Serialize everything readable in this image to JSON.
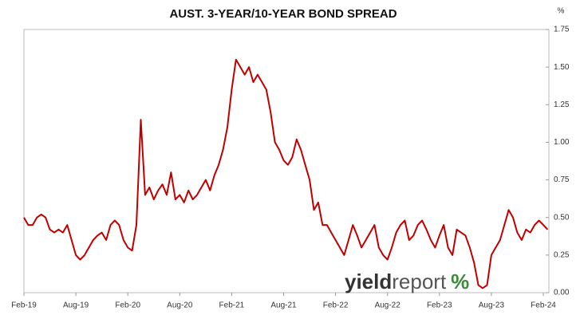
{
  "chart_data": {
    "type": "line",
    "title": "AUST. 3-YEAR/10-YEAR BOND SPREAD",
    "y_unit": "%",
    "watermark": [
      "yield",
      "report",
      "%"
    ],
    "categories": [
      "Feb-19",
      null,
      null,
      null,
      null,
      null,
      null,
      null,
      null,
      null,
      null,
      null,
      "Aug-19",
      null,
      null,
      null,
      null,
      null,
      null,
      null,
      null,
      null,
      null,
      null,
      "Feb-20",
      null,
      null,
      null,
      null,
      null,
      null,
      null,
      null,
      null,
      null,
      null,
      "Aug-20",
      null,
      null,
      null,
      null,
      null,
      null,
      null,
      null,
      null,
      null,
      null,
      "Feb-21",
      null,
      null,
      null,
      null,
      null,
      null,
      null,
      null,
      null,
      null,
      null,
      "Aug-21",
      null,
      null,
      null,
      null,
      null,
      null,
      null,
      null,
      null,
      null,
      null,
      "Feb-22",
      null,
      null,
      null,
      null,
      null,
      null,
      null,
      null,
      null,
      null,
      null,
      "Aug-22",
      null,
      null,
      null,
      null,
      null,
      null,
      null,
      null,
      null,
      null,
      null,
      "Feb-23",
      null,
      null,
      null,
      null,
      null,
      null,
      null,
      null,
      null,
      null,
      null,
      "Aug-23",
      null,
      null,
      null,
      null,
      null,
      null,
      null,
      null,
      null,
      null,
      null,
      "Feb-24",
      null
    ],
    "values": [
      0.5,
      0.45,
      0.45,
      0.5,
      0.52,
      0.5,
      0.42,
      0.4,
      0.42,
      0.4,
      0.45,
      0.35,
      0.25,
      0.22,
      0.25,
      0.3,
      0.35,
      0.38,
      0.4,
      0.35,
      0.45,
      0.48,
      0.45,
      0.35,
      0.3,
      0.28,
      0.45,
      1.15,
      0.65,
      0.7,
      0.62,
      0.68,
      0.72,
      0.65,
      0.8,
      0.62,
      0.65,
      0.6,
      0.68,
      0.62,
      0.65,
      0.7,
      0.75,
      0.68,
      0.78,
      0.85,
      0.95,
      1.1,
      1.35,
      1.55,
      1.5,
      1.45,
      1.5,
      1.4,
      1.45,
      1.4,
      1.35,
      1.2,
      1.0,
      0.95,
      0.88,
      0.85,
      0.9,
      1.02,
      0.95,
      0.85,
      0.75,
      0.55,
      0.6,
      0.45,
      0.45,
      0.4,
      0.35,
      0.3,
      0.25,
      0.35,
      0.45,
      0.38,
      0.3,
      0.35,
      0.4,
      0.45,
      0.3,
      0.25,
      0.22,
      0.3,
      0.4,
      0.45,
      0.48,
      0.35,
      0.38,
      0.45,
      0.48,
      0.42,
      0.35,
      0.3,
      0.38,
      0.45,
      0.3,
      0.25,
      0.42,
      0.4,
      0.38,
      0.3,
      0.2,
      0.05,
      0.03,
      0.05,
      0.25,
      0.3,
      0.35,
      0.45,
      0.55,
      0.5,
      0.4,
      0.35,
      0.42,
      0.4,
      0.45,
      0.48,
      0.45,
      0.42
    ],
    "color": "#c00000",
    "ylim": [
      0,
      1.75
    ],
    "yticks": [
      {
        "value": 0,
        "label": "0.00"
      },
      0.25,
      {
        "value": 0.5,
        "label": "0.50"
      },
      0.75,
      {
        "value": 1,
        "label": "1.00"
      },
      1.25,
      {
        "value": 1.5,
        "label": "1.50"
      },
      1.75
    ],
    "axis_side": "right",
    "grid": false
  }
}
